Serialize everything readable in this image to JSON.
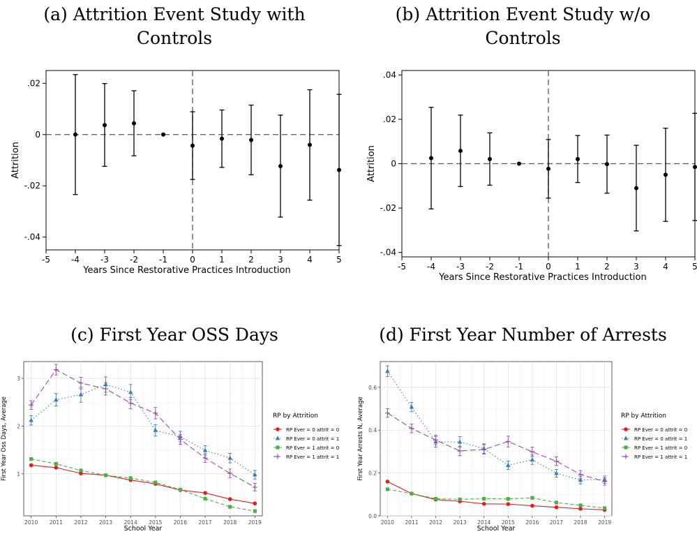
{
  "captions": {
    "a_line1": "(a) Attrition Event Study with",
    "a_line2": "Controls",
    "b_line1": "(b) Attrition Event Study w/o",
    "b_line2": "Controls",
    "c": "(c) First Year OSS Days",
    "d": "(d) First Year Number of Arrests"
  },
  "chart_data": [
    {
      "type": "scatter",
      "title": "(a) Attrition Event Study with Controls",
      "xlabel": "Years Since Restorative Practices Introduction",
      "ylabel": "Attrition",
      "xlim": [
        -5,
        5
      ],
      "ylim": [
        -0.045,
        0.025
      ],
      "xticks": [
        -5,
        -4,
        -3,
        -2,
        -1,
        0,
        1,
        2,
        3,
        4,
        5
      ],
      "yticks": [
        0.02,
        0,
        -0.02,
        -0.04
      ],
      "yticklabels": [
        ".02",
        "0",
        "-.02",
        "-.04"
      ],
      "reference_lines": {
        "h": 0,
        "v": 0
      },
      "x": [
        -4,
        -3,
        -2,
        -1,
        0,
        1,
        2,
        3,
        4,
        5
      ],
      "values": [
        0.0,
        0.0037,
        0.0044,
        0.0,
        -0.0043,
        -0.0016,
        -0.0021,
        -0.0123,
        -0.004,
        -0.0138
      ],
      "lower": [
        -0.0234,
        -0.0124,
        -0.0083,
        0.0,
        -0.0175,
        -0.0128,
        -0.0157,
        -0.0322,
        -0.0256,
        -0.0433
      ],
      "upper": [
        0.0234,
        0.0199,
        0.0171,
        0.0,
        0.0089,
        0.0096,
        0.0115,
        0.0076,
        0.0175,
        0.0157
      ]
    },
    {
      "type": "scatter",
      "title": "(b) Attrition Event Study w/o Controls",
      "xlabel": "Years Since Restorative Practices Introduction",
      "ylabel": "Attrition",
      "xlim": [
        -5,
        5
      ],
      "ylim": [
        -0.042,
        0.042
      ],
      "xticks": [
        -5,
        -4,
        -3,
        -2,
        -1,
        0,
        1,
        2,
        3,
        4,
        5
      ],
      "yticks": [
        0.04,
        0.02,
        0,
        -0.02,
        -0.04
      ],
      "yticklabels": [
        ".04",
        ".02",
        "0",
        "-.02",
        "-.04"
      ],
      "reference_lines": {
        "h": 0,
        "v": 0
      },
      "x": [
        -4,
        -3,
        -2,
        -1,
        0,
        1,
        2,
        3,
        4,
        5
      ],
      "values": [
        0.0025,
        0.0058,
        0.0021,
        0.0,
        -0.0023,
        0.0021,
        -0.0002,
        -0.011,
        -0.005,
        -0.0015
      ],
      "lower": [
        -0.0204,
        -0.0103,
        -0.0097,
        0.0,
        -0.0155,
        -0.0085,
        -0.0133,
        -0.0303,
        -0.026,
        -0.0256
      ],
      "upper": [
        0.0254,
        0.0219,
        0.0139,
        0.0,
        0.0109,
        0.0127,
        0.0129,
        0.0083,
        0.016,
        0.0227
      ]
    },
    {
      "type": "line",
      "title": "(c) First Year OSS Days",
      "xlabel": "School Year",
      "ylabel": "First Year Oss Days, Average",
      "xlim": [
        2009.7,
        2019.3
      ],
      "ylim": [
        0.12,
        3.35
      ],
      "yticks": [
        1,
        2,
        3
      ],
      "x": [
        2010,
        2011,
        2012,
        2013,
        2014,
        2015,
        2016,
        2017,
        2018,
        2019
      ],
      "legend_title": "RP by Attrition",
      "legend_position": "right",
      "series": [
        {
          "name": "RP Ever = 0 attrit = 0",
          "color": "#e41a1c",
          "marker": "circle",
          "dash": "solid",
          "values": [
            1.18,
            1.13,
            1.01,
            0.97,
            0.87,
            0.79,
            0.66,
            0.6,
            0.47,
            0.38
          ]
        },
        {
          "name": "RP Ever = 0 attrit = 1",
          "color": "#377eb8",
          "marker": "triangle",
          "dash": "dotted",
          "values": [
            2.12,
            2.55,
            2.66,
            2.87,
            2.71,
            1.91,
            1.78,
            1.49,
            1.33,
            0.98
          ],
          "err": [
            0.1,
            0.13,
            0.16,
            0.16,
            0.16,
            0.12,
            0.11,
            0.1,
            0.1,
            0.09
          ]
        },
        {
          "name": "RP Ever = 1 attrit = 0",
          "color": "#4daf4a",
          "marker": "square",
          "dash": "dashed",
          "values": [
            1.31,
            1.21,
            1.07,
            0.97,
            0.91,
            0.82,
            0.67,
            0.48,
            0.31,
            0.22
          ]
        },
        {
          "name": "RP Ever = 1 attrit = 1",
          "color": "#984ea3",
          "marker": "plus",
          "dash": "longdash",
          "values": [
            2.44,
            3.18,
            2.9,
            2.78,
            2.48,
            2.27,
            1.72,
            1.33,
            1.01,
            0.72
          ],
          "err": [
            0.09,
            0.11,
            0.12,
            0.13,
            0.12,
            0.12,
            0.1,
            0.09,
            0.09,
            0.08
          ]
        }
      ]
    },
    {
      "type": "line",
      "title": "(d) First Year Number of Arrests",
      "xlabel": "School Year",
      "ylabel": "First Year Arrests N, Average",
      "xlim": [
        2009.7,
        2019.3
      ],
      "ylim": [
        0.0,
        0.72
      ],
      "yticks": [
        0.0,
        0.2,
        0.4,
        0.6
      ],
      "yticklabels": [
        "0.0",
        "0.2",
        "0.4",
        "0.6"
      ],
      "x": [
        2010,
        2011,
        2012,
        2013,
        2014,
        2015,
        2016,
        2017,
        2018,
        2019
      ],
      "legend_title": "RP by Attrition",
      "legend_position": "right",
      "series": [
        {
          "name": "RP Ever = 0 attrit = 0",
          "color": "#e41a1c",
          "marker": "circle",
          "dash": "solid",
          "values": [
            0.16,
            0.104,
            0.076,
            0.068,
            0.056,
            0.055,
            0.047,
            0.04,
            0.033,
            0.028
          ]
        },
        {
          "name": "RP Ever = 0 attrit = 1",
          "color": "#377eb8",
          "marker": "triangle",
          "dash": "dotted",
          "values": [
            0.675,
            0.508,
            0.346,
            0.345,
            0.314,
            0.236,
            0.262,
            0.199,
            0.167,
            0.169
          ],
          "err": [
            0.025,
            0.022,
            0.025,
            0.025,
            0.022,
            0.02,
            0.022,
            0.018,
            0.018,
            0.017
          ]
        },
        {
          "name": "RP Ever = 1 attrit = 0",
          "color": "#4daf4a",
          "marker": "square",
          "dash": "dashed",
          "values": [
            0.124,
            0.104,
            0.08,
            0.077,
            0.08,
            0.079,
            0.084,
            0.062,
            0.049,
            0.036
          ]
        },
        {
          "name": "RP Ever = 1 attrit = 1",
          "color": "#984ea3",
          "marker": "plus",
          "dash": "longdash",
          "values": [
            0.48,
            0.408,
            0.354,
            0.303,
            0.31,
            0.347,
            0.299,
            0.255,
            0.193,
            0.16
          ],
          "err": [
            0.02,
            0.02,
            0.022,
            0.022,
            0.022,
            0.025,
            0.022,
            0.02,
            0.018,
            0.017
          ]
        }
      ]
    }
  ]
}
